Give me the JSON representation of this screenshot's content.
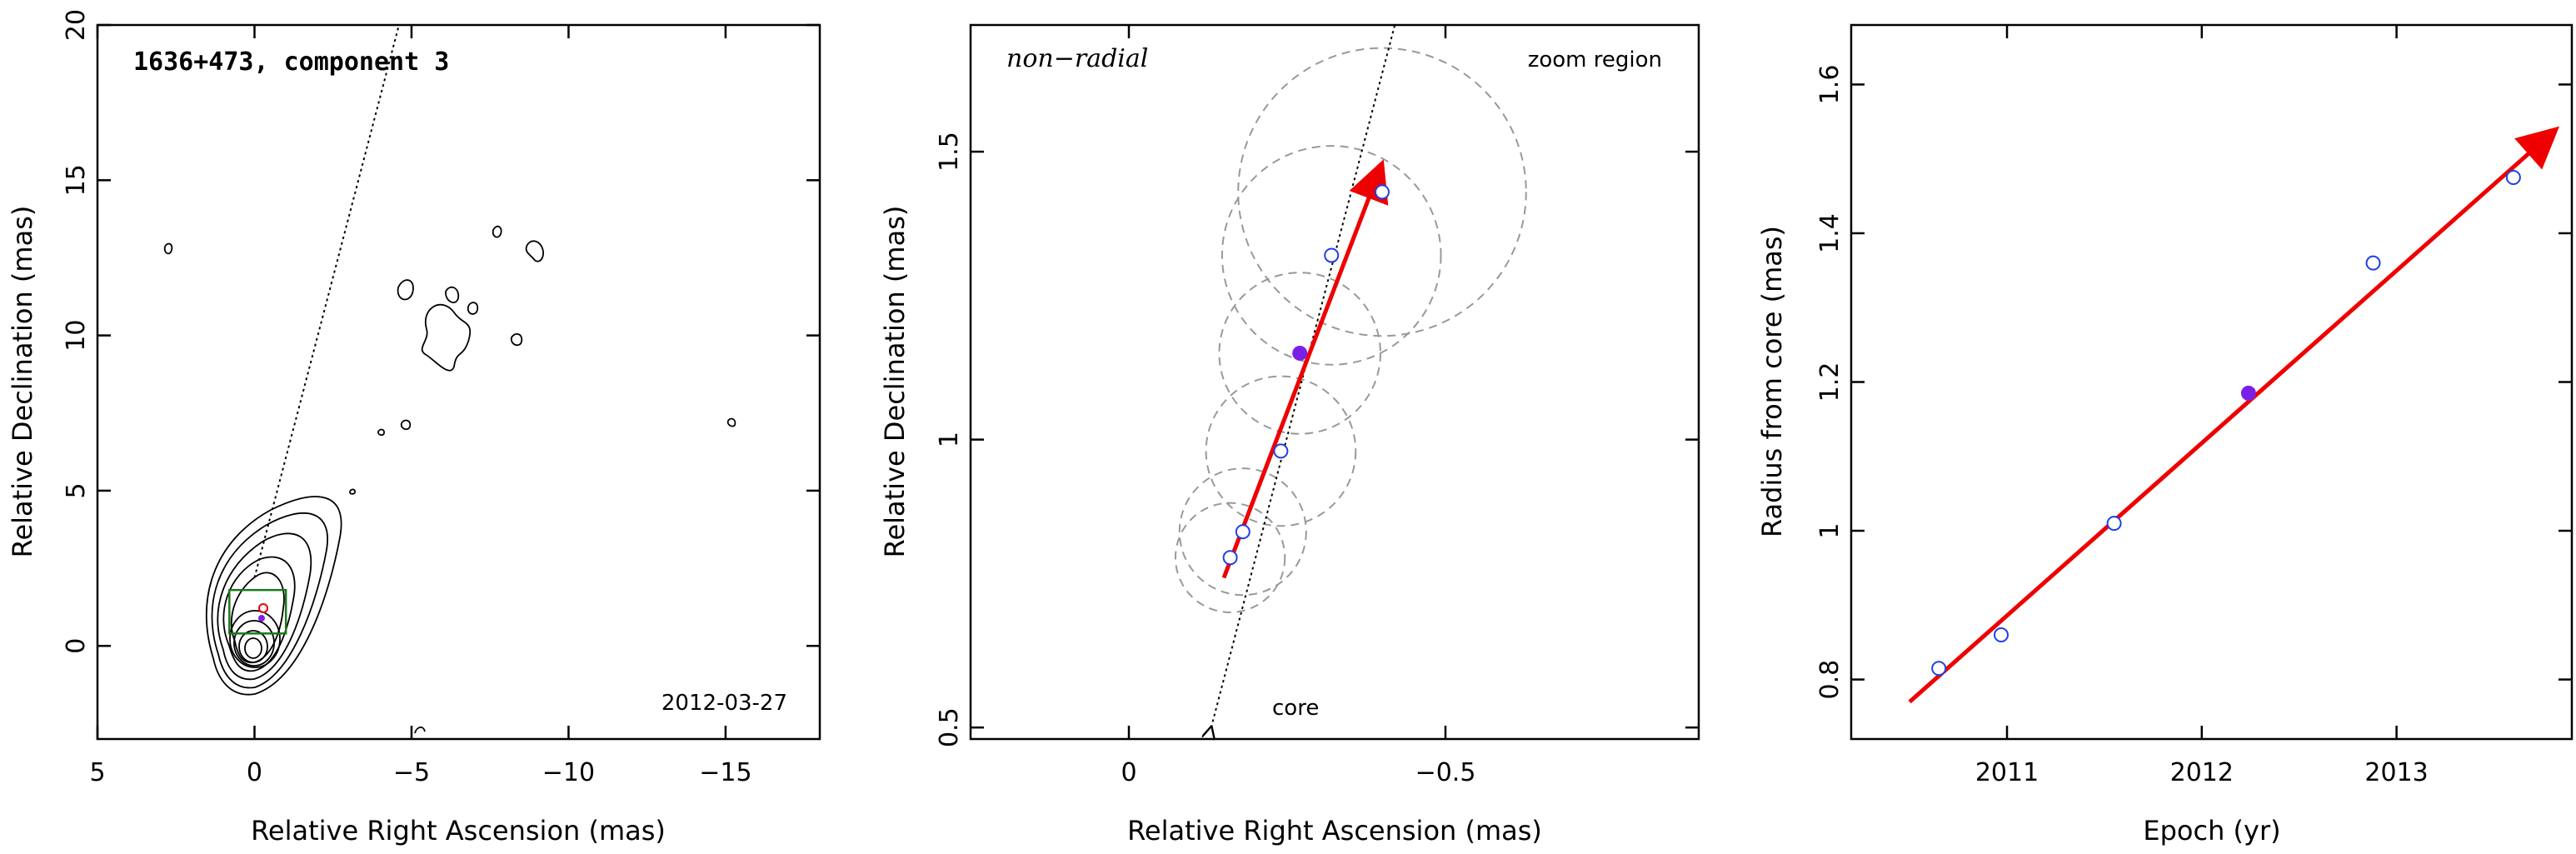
{
  "chart_data": [
    {
      "type": "contour",
      "title": "1636+473, component 3",
      "xlabel": "Relative Right Ascension (mas)",
      "ylabel": "Relative Declination (mas)",
      "xlim": [
        5,
        -18
      ],
      "ylim": [
        -3,
        20
      ],
      "xticks": [
        5,
        0,
        -5,
        -10,
        -15
      ],
      "yticks": [
        0,
        5,
        10,
        15,
        20
      ],
      "xtick_labels": [
        "5",
        "0",
        "−5",
        "−10",
        "−15"
      ],
      "ytick_labels": [
        "0",
        "5",
        "10",
        "15",
        "20"
      ],
      "date_label": "2012-03-27",
      "zoom_box": {
        "x": [
          0.8,
          -1.0
        ],
        "y": [
          0.4,
          1.8
        ],
        "color": "#1a7a1a"
      },
      "contour_color": "#000000",
      "trajectory": {
        "style": "dotted",
        "from": [
          0,
          0
        ],
        "to": [
          -4.6,
          20
        ]
      }
    },
    {
      "type": "scatter",
      "xlabel": "Relative Right Ascension (mas)",
      "ylabel": "Relative Declination (mas)",
      "xlim": [
        0.25,
        -0.9
      ],
      "ylim": [
        0.48,
        1.72
      ],
      "xticks": [
        0,
        -0.5
      ],
      "yticks": [
        0.5,
        1,
        1.5
      ],
      "xtick_labels": [
        "0",
        "−0.5"
      ],
      "ytick_labels": [
        "0.5",
        "1",
        "1.5"
      ],
      "label_left": "non−radial",
      "label_right": "zoom region",
      "core_label": "core",
      "points": [
        {
          "x": -0.16,
          "y": 0.795,
          "r": 0.095,
          "filled": false
        },
        {
          "x": -0.18,
          "y": 0.84,
          "r": 0.11,
          "filled": false
        },
        {
          "x": -0.24,
          "y": 0.98,
          "r": 0.13,
          "filled": false
        },
        {
          "x": -0.27,
          "y": 1.15,
          "r": 0.14,
          "filled": true
        },
        {
          "x": -0.32,
          "y": 1.32,
          "r": 0.19,
          "filled": false
        },
        {
          "x": -0.4,
          "y": 1.43,
          "r": 0.25,
          "filled": false
        }
      ],
      "fit_arrow": {
        "from": [
          -0.15,
          0.76
        ],
        "to": [
          -0.4,
          1.48
        ],
        "color": "#ee0000"
      },
      "trajectory": {
        "style": "dotted",
        "from": [
          -0.13,
          0.5
        ],
        "to": [
          -0.42,
          1.72
        ]
      },
      "point_color": "#1f3fe8",
      "filled_color": "#7a1fe8"
    },
    {
      "type": "scatter",
      "xlabel": "Epoch (yr)",
      "ylabel": "Radius from core (mas)",
      "xlim": [
        2010.2,
        2013.9
      ],
      "ylim": [
        0.72,
        1.68
      ],
      "xticks": [
        2011,
        2012,
        2013
      ],
      "yticks": [
        0.8,
        1,
        1.2,
        1.4,
        1.6
      ],
      "xtick_labels": [
        "2011",
        "2012",
        "2013"
      ],
      "ytick_labels": [
        "0.8",
        "1",
        "1.2",
        "1.4",
        "1.6"
      ],
      "points": [
        {
          "x": 2010.65,
          "y": 0.815,
          "filled": false
        },
        {
          "x": 2010.97,
          "y": 0.86,
          "filled": false
        },
        {
          "x": 2011.55,
          "y": 1.01,
          "filled": false
        },
        {
          "x": 2012.24,
          "y": 1.185,
          "filled": true
        },
        {
          "x": 2012.88,
          "y": 1.36,
          "filled": false
        },
        {
          "x": 2013.6,
          "y": 1.475,
          "filled": false
        }
      ],
      "fit_arrow": {
        "from": [
          2010.5,
          0.77
        ],
        "to": [
          2013.82,
          1.54
        ],
        "color": "#ee0000"
      },
      "point_color": "#1f3fe8",
      "filled_color": "#7a1fe8"
    }
  ]
}
